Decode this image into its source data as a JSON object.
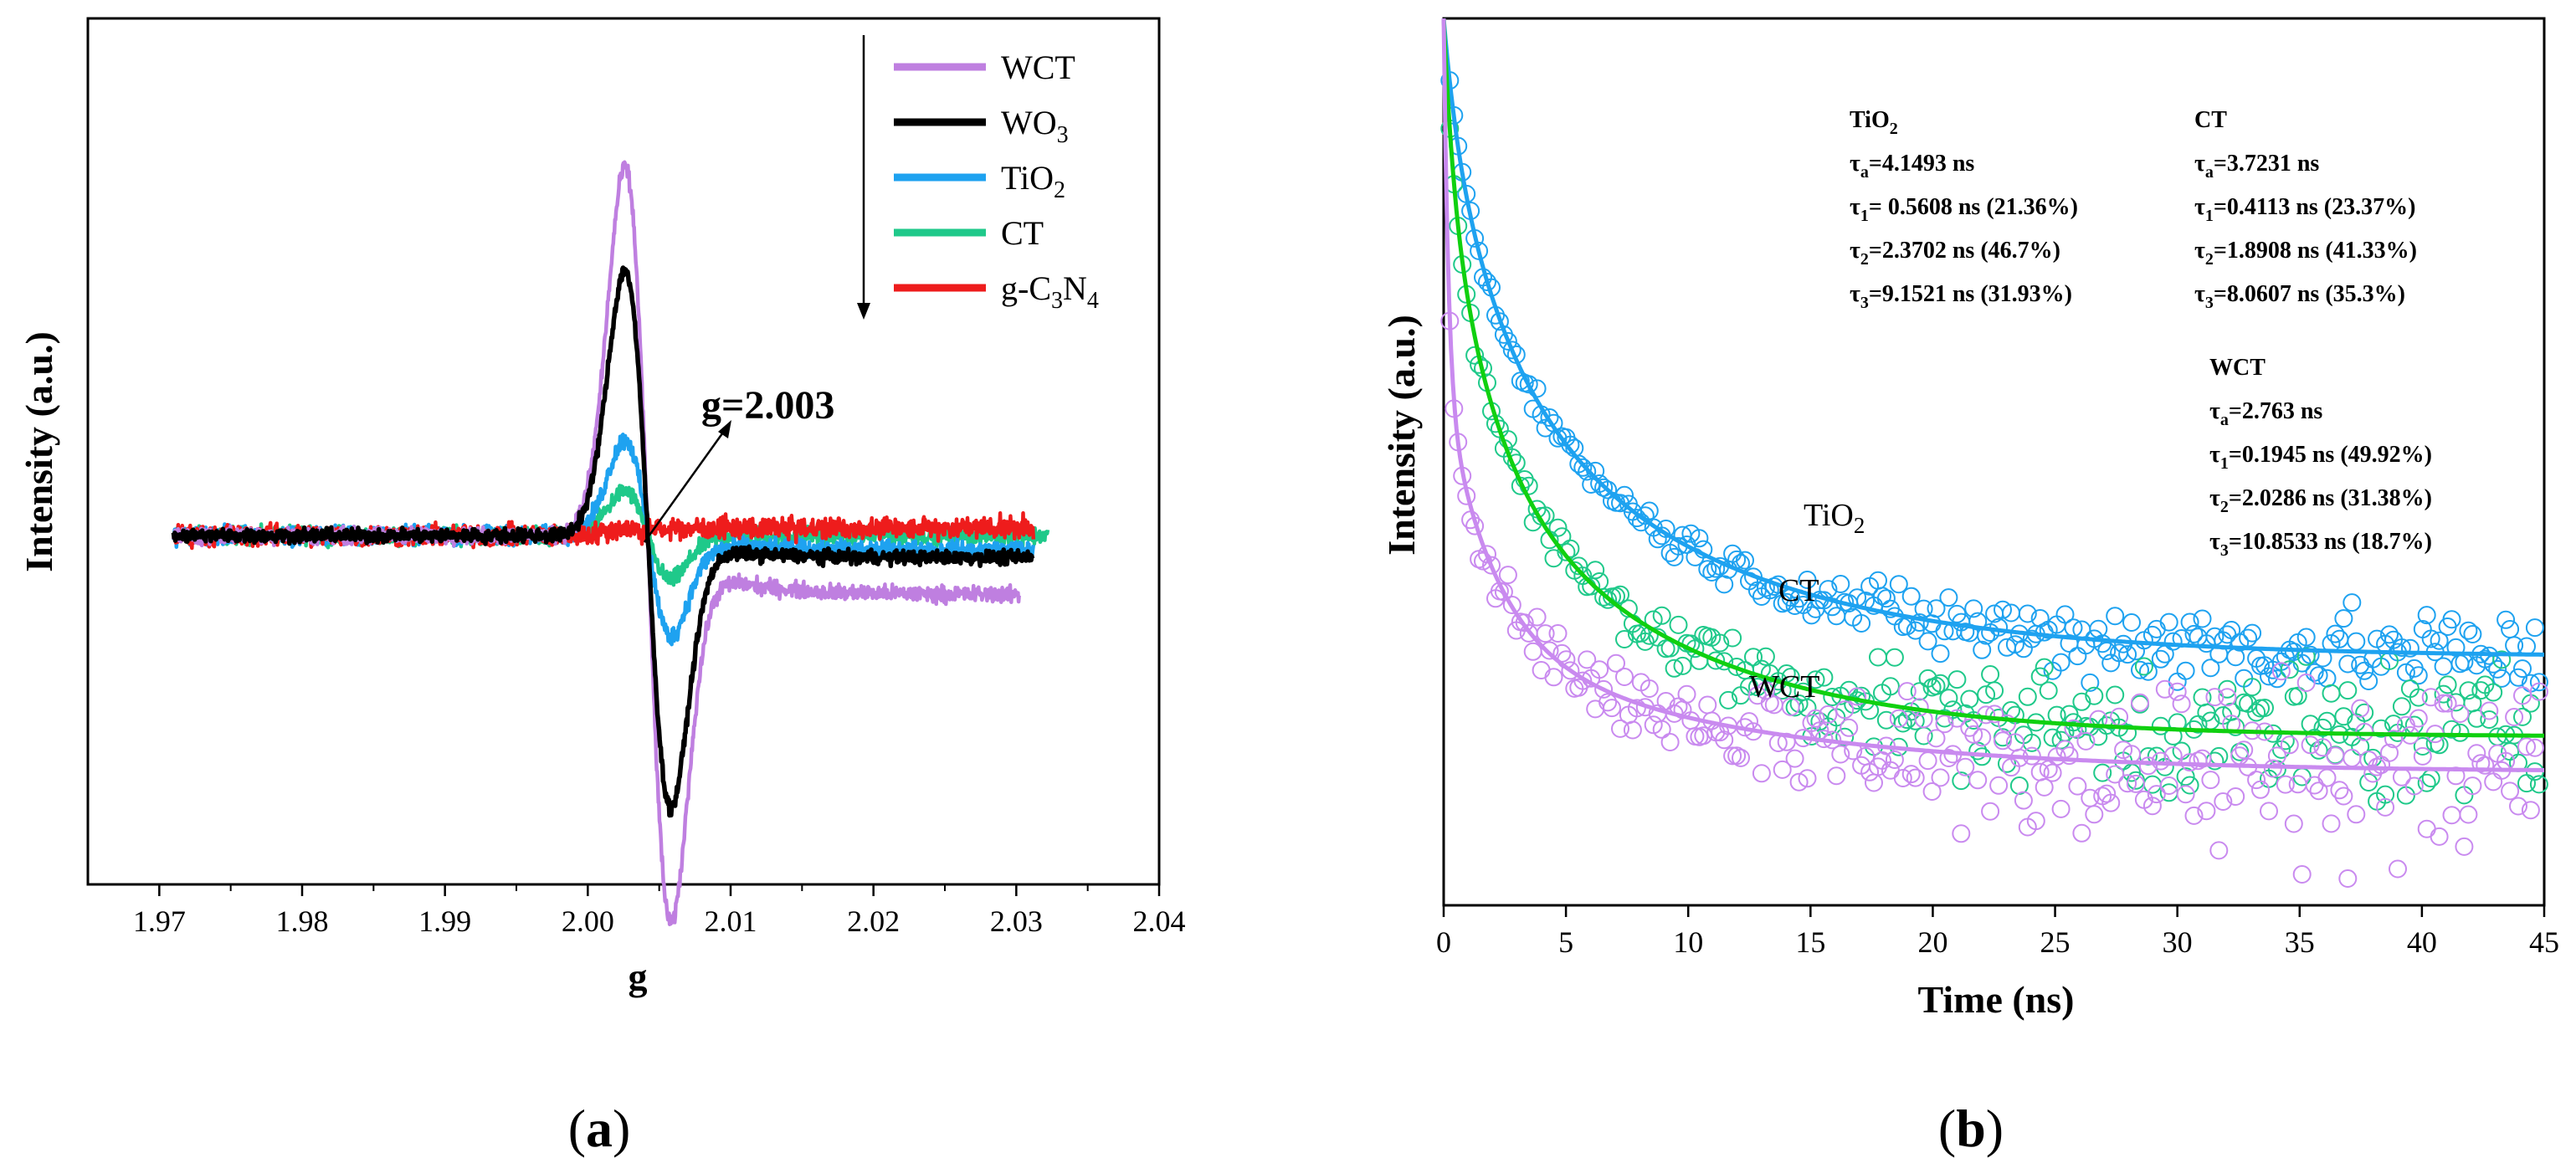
{
  "chart_data": [
    {
      "type": "line",
      "panel_label": "a",
      "xlabel": "g",
      "ylabel": "Intensity (a.u.)",
      "xlim": [
        1.965,
        2.04
      ],
      "ylim": [
        -0.85,
        1.0
      ],
      "xticks": [
        "1.97",
        "1.98",
        "1.99",
        "2.00",
        "2.01",
        "2.02",
        "2.03",
        "2.04"
      ],
      "xtick_values": [
        1.97,
        1.98,
        1.99,
        2.0,
        2.01,
        2.02,
        2.03,
        2.04
      ],
      "legend_position": "top-right",
      "annotation": "g=2.003",
      "series": [
        {
          "name": "WCT",
          "name_base": "WCT",
          "name_sub": [],
          "color": "#BF7FE0",
          "amp": 1.0,
          "tail": -0.16,
          "noise": 0.012
        },
        {
          "name": "WO3",
          "name_base": "WO",
          "name_sub": [
            "3"
          ],
          "color": "#000000",
          "amp": 0.72,
          "tail": -0.06,
          "noise": 0.01
        },
        {
          "name": "TiO2",
          "name_base": "TiO",
          "name_sub": [
            "2"
          ],
          "color": "#1EA2F0",
          "amp": 0.26,
          "tail": -0.04,
          "noise": 0.014
        },
        {
          "name": "CT",
          "name_base": "CT",
          "name_sub": [],
          "color": "#1FC98A",
          "amp": 0.12,
          "tail": 0.0,
          "noise": 0.013
        },
        {
          "name": "g-C3N4",
          "name_base": "g-C",
          "name_sub": [
            "3",
            "N",
            "4"
          ],
          "color": "#EE1C1C",
          "amp": 0.02,
          "tail": 0.02,
          "noise": 0.016
        }
      ]
    },
    {
      "type": "scatter",
      "panel_label": "b",
      "xlabel": "Time (ns)",
      "ylabel": "Intensity (a.u.)",
      "xlim": [
        0,
        45
      ],
      "ylim": [
        0,
        1
      ],
      "xticks": [
        "0",
        "5",
        "10",
        "15",
        "20",
        "25",
        "30",
        "35",
        "40",
        "45"
      ],
      "xtick_values": [
        0,
        5,
        10,
        15,
        20,
        25,
        30,
        35,
        40,
        45
      ],
      "series": [
        {
          "name": "TiO2",
          "color": "#1EA2F0",
          "fit": {
            "base": 0.28,
            "terms": [
              [
                0.1,
                0.5608
              ],
              [
                0.26,
                2.3702
              ],
              [
                0.36,
                9.1521
              ]
            ]
          },
          "scatter_noise": 0.018
        },
        {
          "name": "CT",
          "color": "#1FC98A",
          "fit_color": "#10D010",
          "fit": {
            "base": 0.19,
            "terms": [
              [
                0.17,
                0.4113
              ],
              [
                0.3,
                1.8908
              ],
              [
                0.34,
                8.0607
              ]
            ]
          },
          "scatter_noise": 0.03
        },
        {
          "name": "WCT",
          "color": "#C98AEF",
          "fit": {
            "base": 0.15,
            "terms": [
              [
                0.42,
                0.1945
              ],
              [
                0.28,
                2.0286
              ],
              [
                0.15,
                10.8533
              ]
            ]
          },
          "scatter_noise": 0.04
        }
      ],
      "curve_labels": [
        {
          "base": "TiO",
          "sub": "2"
        },
        {
          "base": "CT",
          "sub": ""
        },
        {
          "base": "WCT",
          "sub": ""
        }
      ],
      "annotations": [
        {
          "title": "TiO2",
          "title_base": "TiO",
          "title_sub": "2",
          "lines": [
            {
              "sym": "τ",
              "sub": "a",
              "text": "=4.1493 ns"
            },
            {
              "sym": "τ",
              "sub": "1",
              "text": "= 0.5608 ns (21.36%)"
            },
            {
              "sym": "τ",
              "sub": "2",
              "text": "=2.3702 ns (46.7%)"
            },
            {
              "sym": "τ",
              "sub": "3",
              "text": "=9.1521 ns (31.93%)"
            }
          ]
        },
        {
          "title": "CT",
          "title_base": "CT",
          "title_sub": "",
          "lines": [
            {
              "sym": "τ",
              "sub": "a",
              "text": "=3.7231 ns"
            },
            {
              "sym": "τ",
              "sub": "1",
              "text": "=0.4113 ns (23.37%)"
            },
            {
              "sym": "τ",
              "sub": "2",
              "text": "=1.8908 ns (41.33%)"
            },
            {
              "sym": "τ",
              "sub": "3",
              "text": "=8.0607 ns (35.3%)"
            }
          ]
        },
        {
          "title": "WCT",
          "title_base": "WCT",
          "title_sub": "",
          "lines": [
            {
              "sym": "τ",
              "sub": "a",
              "text": "=2.763 ns"
            },
            {
              "sym": "τ",
              "sub": "1",
              "text": "=0.1945 ns (49.92%)"
            },
            {
              "sym": "τ",
              "sub": "2",
              "text": "=2.0286 ns (31.38%)"
            },
            {
              "sym": "τ",
              "sub": "3",
              "text": "=10.8533 ns (18.7%)"
            }
          ]
        }
      ]
    }
  ]
}
